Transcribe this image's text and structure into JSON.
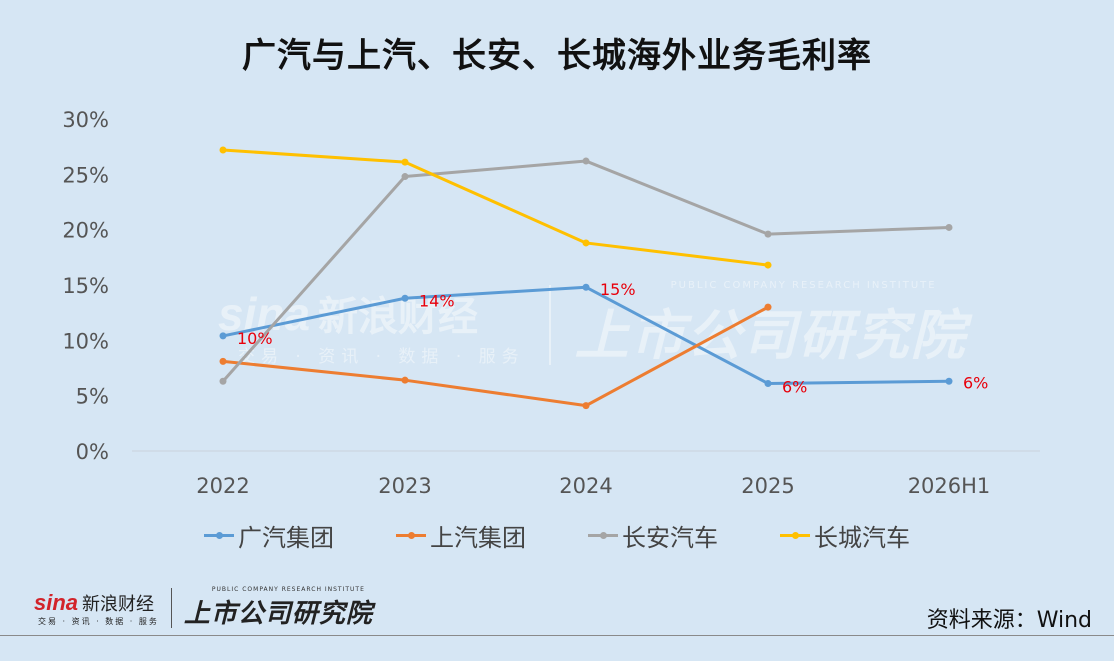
{
  "chart_data": {
    "type": "line",
    "title": "广汽与上汽、长安、长城海外业务毛利率",
    "categories": [
      "2022",
      "2023",
      "2024",
      "2025",
      "2026H1"
    ],
    "y_tick_labels": [
      "0%",
      "5%",
      "10%",
      "15%",
      "20%",
      "25%",
      "30%"
    ],
    "ylim": [
      0,
      30
    ],
    "y_unit": "%",
    "grid": "horizontal baseline only",
    "legend_position": "bottom",
    "series": [
      {
        "name": "广汽集团",
        "color": "#5b9bd5",
        "values": [
          10.4,
          13.8,
          14.8,
          6.1,
          6.3
        ],
        "data_labels": [
          "10%",
          "14%",
          "15%",
          "6%",
          "6%"
        ]
      },
      {
        "name": "上汽集团",
        "color": "#ed7d31",
        "values": [
          8.1,
          6.4,
          4.1,
          13.0,
          null
        ],
        "data_labels": []
      },
      {
        "name": "长安汽车",
        "color": "#a5a5a5",
        "values": [
          6.3,
          24.8,
          26.2,
          19.6,
          20.2
        ],
        "data_labels": []
      },
      {
        "name": "长城汽车",
        "color": "#ffc000",
        "values": [
          27.2,
          26.1,
          18.8,
          16.8,
          null
        ],
        "data_labels": []
      }
    ],
    "data_label_color": "#e8000b"
  },
  "footer": {
    "source": "资料来源：Wind",
    "logo_sina": "sina",
    "logo_cn": "新浪财经",
    "logo_sub": "交易 · 资讯 · 数据 · 服务",
    "institute_en": "PUBLIC COMPANY RESEARCH INSTITUTE",
    "institute_cn": "上市公司研究院"
  }
}
